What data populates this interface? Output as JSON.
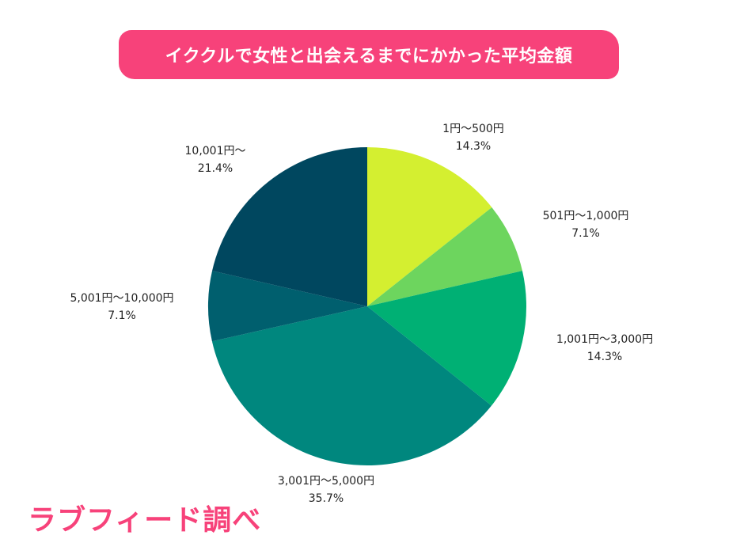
{
  "chart_data": {
    "type": "pie",
    "title": "イククルで女性と出会えるまでにかかった平均金額",
    "categories": [
      "1円〜500円",
      "501円〜1,000円",
      "1,001円〜3,000円",
      "3,001円〜5,000円",
      "5,001円〜10,000円",
      "10,001円〜"
    ],
    "values": [
      14.3,
      7.1,
      14.3,
      35.7,
      7.1,
      21.4
    ],
    "value_labels": [
      "14.3%",
      "7.1%",
      "14.3%",
      "35.7%",
      "7.1%",
      "21.4%"
    ],
    "colors": [
      "#d4ef30",
      "#6dd55e",
      "#00b074",
      "#00877e",
      "#005f6e",
      "#00475f"
    ],
    "start": "top",
    "direction": "clockwise"
  },
  "source": "ラブフィード調べ",
  "accent": "#f7427a"
}
